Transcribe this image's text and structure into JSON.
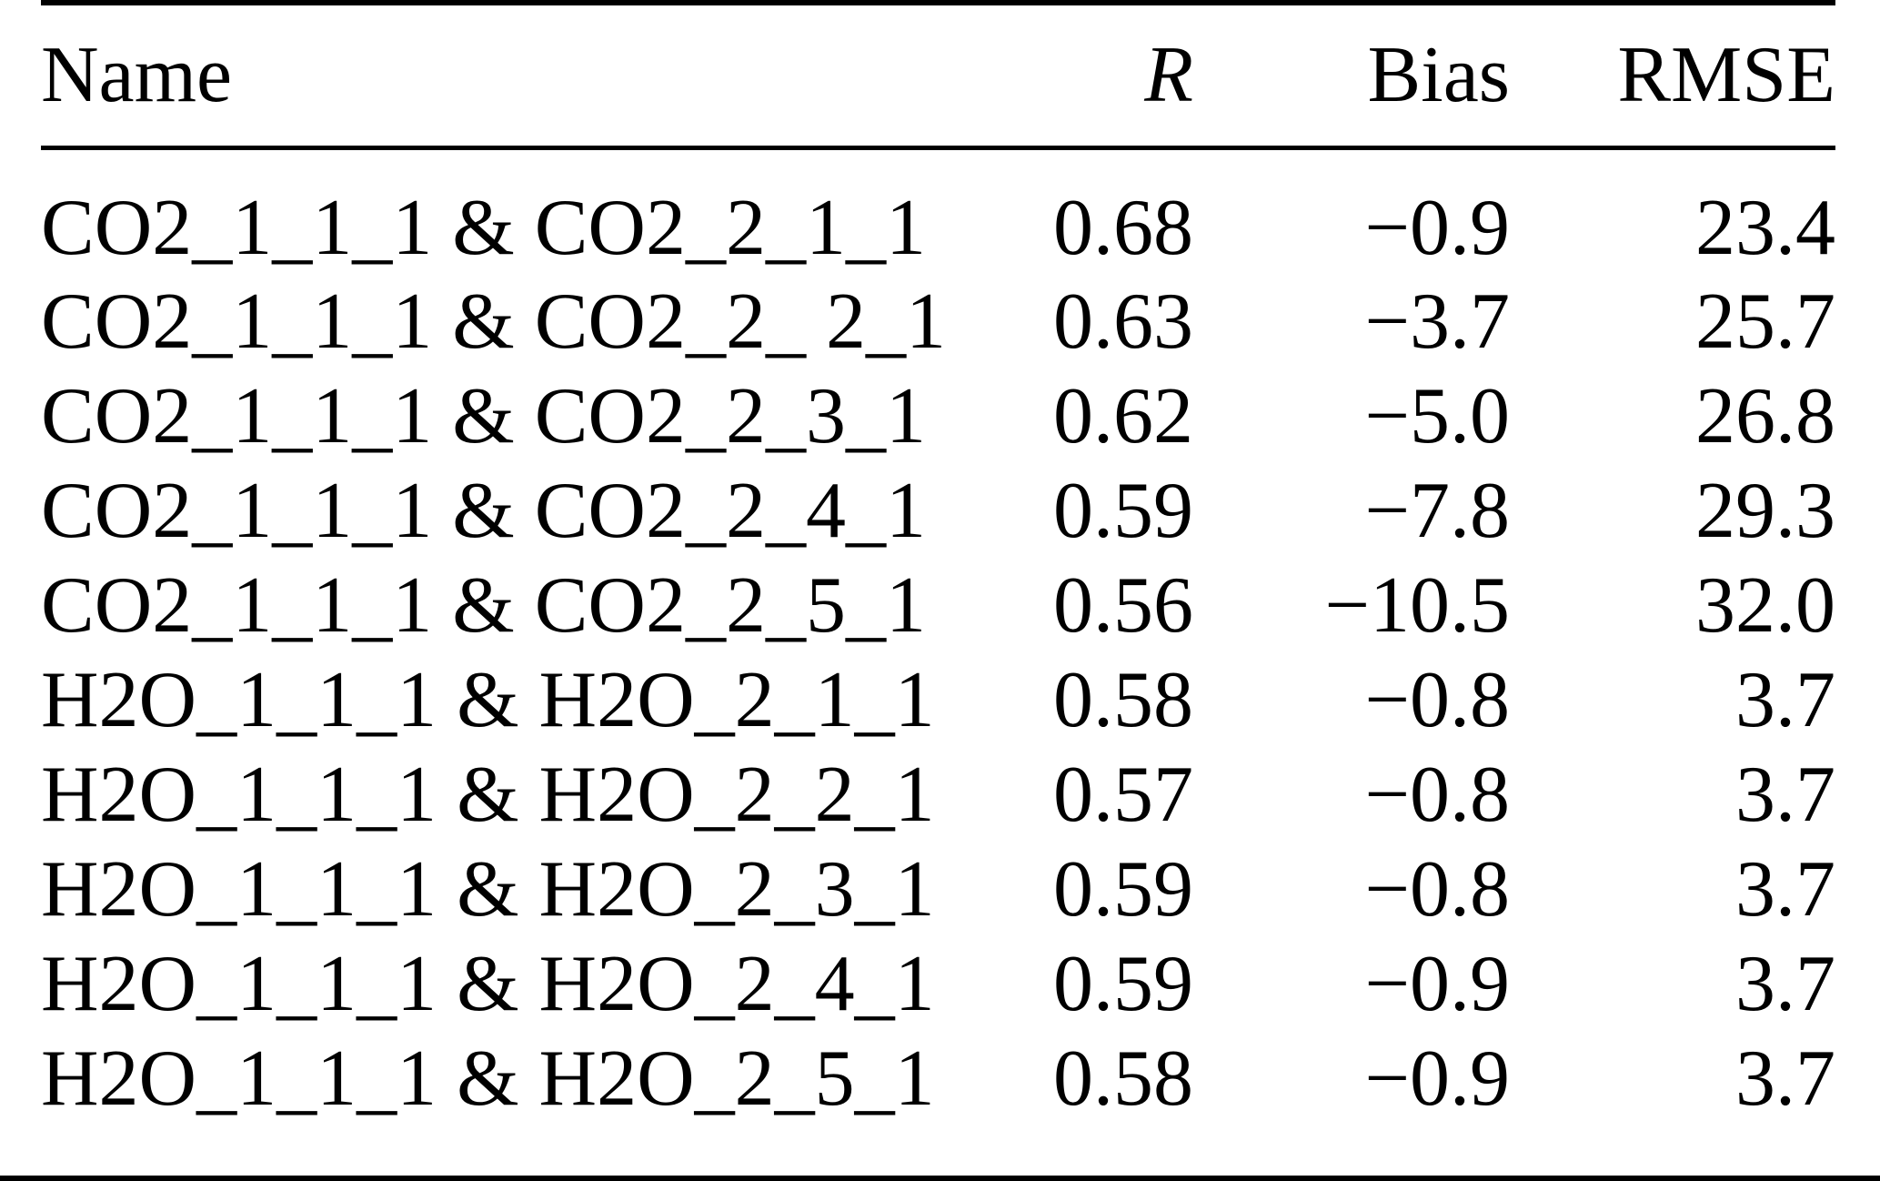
{
  "table": {
    "columns": [
      "Name",
      "R",
      "Bias",
      "RMSE"
    ],
    "rows": [
      {
        "name": "CO2_1_1_1 & CO2_2_1_1",
        "r": "0.68",
        "bias": "−0.9",
        "rmse": "23.4"
      },
      {
        "name": "CO2_1_1_1 & CO2_2_ 2_1",
        "r": "0.63",
        "bias": "−3.7",
        "rmse": "25.7"
      },
      {
        "name": "CO2_1_1_1 & CO2_2_3_1",
        "r": "0.62",
        "bias": "−5.0",
        "rmse": "26.8"
      },
      {
        "name": "CO2_1_1_1 & CO2_2_4_1",
        "r": "0.59",
        "bias": "−7.8",
        "rmse": "29.3"
      },
      {
        "name": "CO2_1_1_1 & CO2_2_5_1",
        "r": "0.56",
        "bias": "−10.5",
        "rmse": "32.0"
      },
      {
        "name": "H2O_1_1_1 & H2O_2_1_1",
        "r": "0.58",
        "bias": "−0.8",
        "rmse": "3.7"
      },
      {
        "name": "H2O_1_1_1 & H2O_2_2_1",
        "r": "0.57",
        "bias": "−0.8",
        "rmse": "3.7"
      },
      {
        "name": "H2O_1_1_1 & H2O_2_3_1",
        "r": "0.59",
        "bias": "−0.8",
        "rmse": "3.7"
      },
      {
        "name": "H2O_1_1_1 & H2O_2_4_1",
        "r": "0.59",
        "bias": "−0.9",
        "rmse": "3.7"
      },
      {
        "name": "H2O_1_1_1 & H2O_2_5_1",
        "r": "0.58",
        "bias": "−0.9",
        "rmse": "3.7"
      }
    ]
  },
  "chart_data": {
    "type": "table",
    "columns": [
      "Name",
      "R",
      "Bias",
      "RMSE"
    ],
    "rows": [
      [
        "CO2_1_1_1 & CO2_2_1_1",
        0.68,
        -0.9,
        23.4
      ],
      [
        "CO2_1_1_1 & CO2_2_ 2_1",
        0.63,
        -3.7,
        25.7
      ],
      [
        "CO2_1_1_1 & CO2_2_3_1",
        0.62,
        -5.0,
        26.8
      ],
      [
        "CO2_1_1_1 & CO2_2_4_1",
        0.59,
        -7.8,
        29.3
      ],
      [
        "CO2_1_1_1 & CO2_2_5_1",
        0.56,
        -10.5,
        32.0
      ],
      [
        "H2O_1_1_1 & H2O_2_1_1",
        0.58,
        -0.8,
        3.7
      ],
      [
        "H2O_1_1_1 & H2O_2_2_1",
        0.57,
        -0.8,
        3.7
      ],
      [
        "H2O_1_1_1 & H2O_2_3_1",
        0.59,
        -0.8,
        3.7
      ],
      [
        "H2O_1_1_1 & H2O_2_4_1",
        0.59,
        -0.9,
        3.7
      ],
      [
        "H2O_1_1_1 & H2O_2_5_1",
        0.58,
        -0.9,
        3.7
      ]
    ]
  },
  "colors": {
    "text": "#000000",
    "background": "#ffffff",
    "rule": "#000000"
  }
}
